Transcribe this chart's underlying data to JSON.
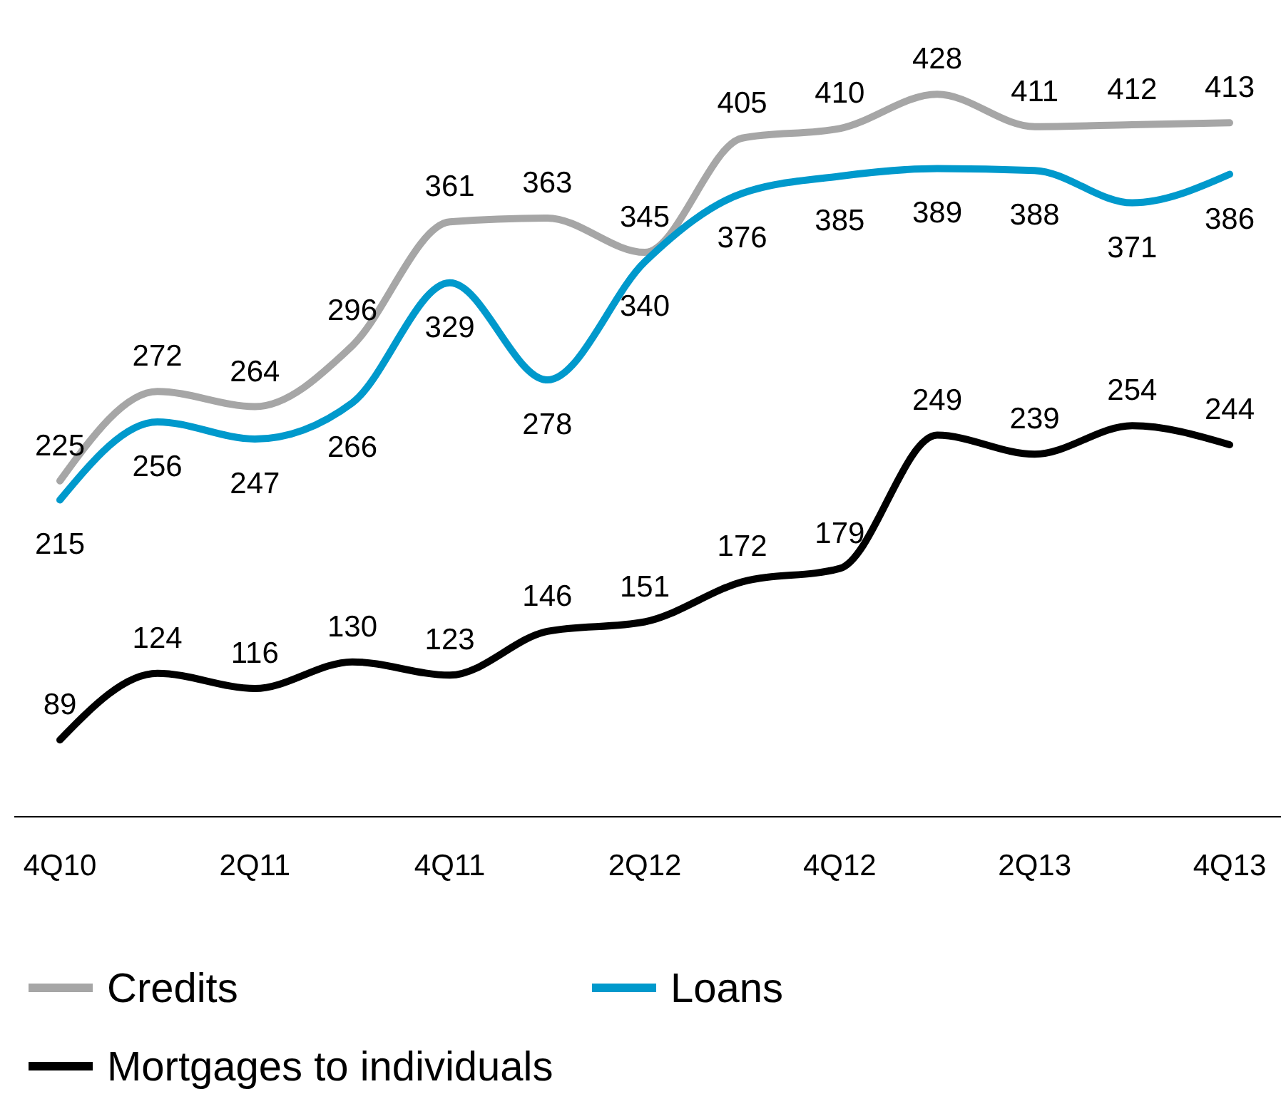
{
  "chart_data": {
    "type": "line",
    "categories": [
      "4Q10",
      null,
      "2Q11",
      null,
      "4Q11",
      null,
      "2Q12",
      null,
      "4Q12",
      null,
      "2Q13",
      null,
      "4Q13"
    ],
    "series": [
      {
        "name": "Credits",
        "color": "#a6a6a6",
        "values": [
          225,
          272,
          264,
          296,
          361,
          363,
          345,
          405,
          410,
          428,
          411,
          412,
          413
        ]
      },
      {
        "name": "Loans",
        "color": "#0099cc",
        "values": [
          215,
          256,
          247,
          266,
          329,
          278,
          340,
          376,
          385,
          389,
          388,
          371,
          386
        ]
      },
      {
        "name": "Mortgages to individuals",
        "color": "#000000",
        "values": [
          89,
          124,
          116,
          130,
          123,
          146,
          151,
          172,
          179,
          249,
          239,
          254,
          244
        ]
      }
    ],
    "data_labels": true,
    "legend": "bottom",
    "grid": false,
    "marker": "none",
    "line_style": "solid"
  }
}
